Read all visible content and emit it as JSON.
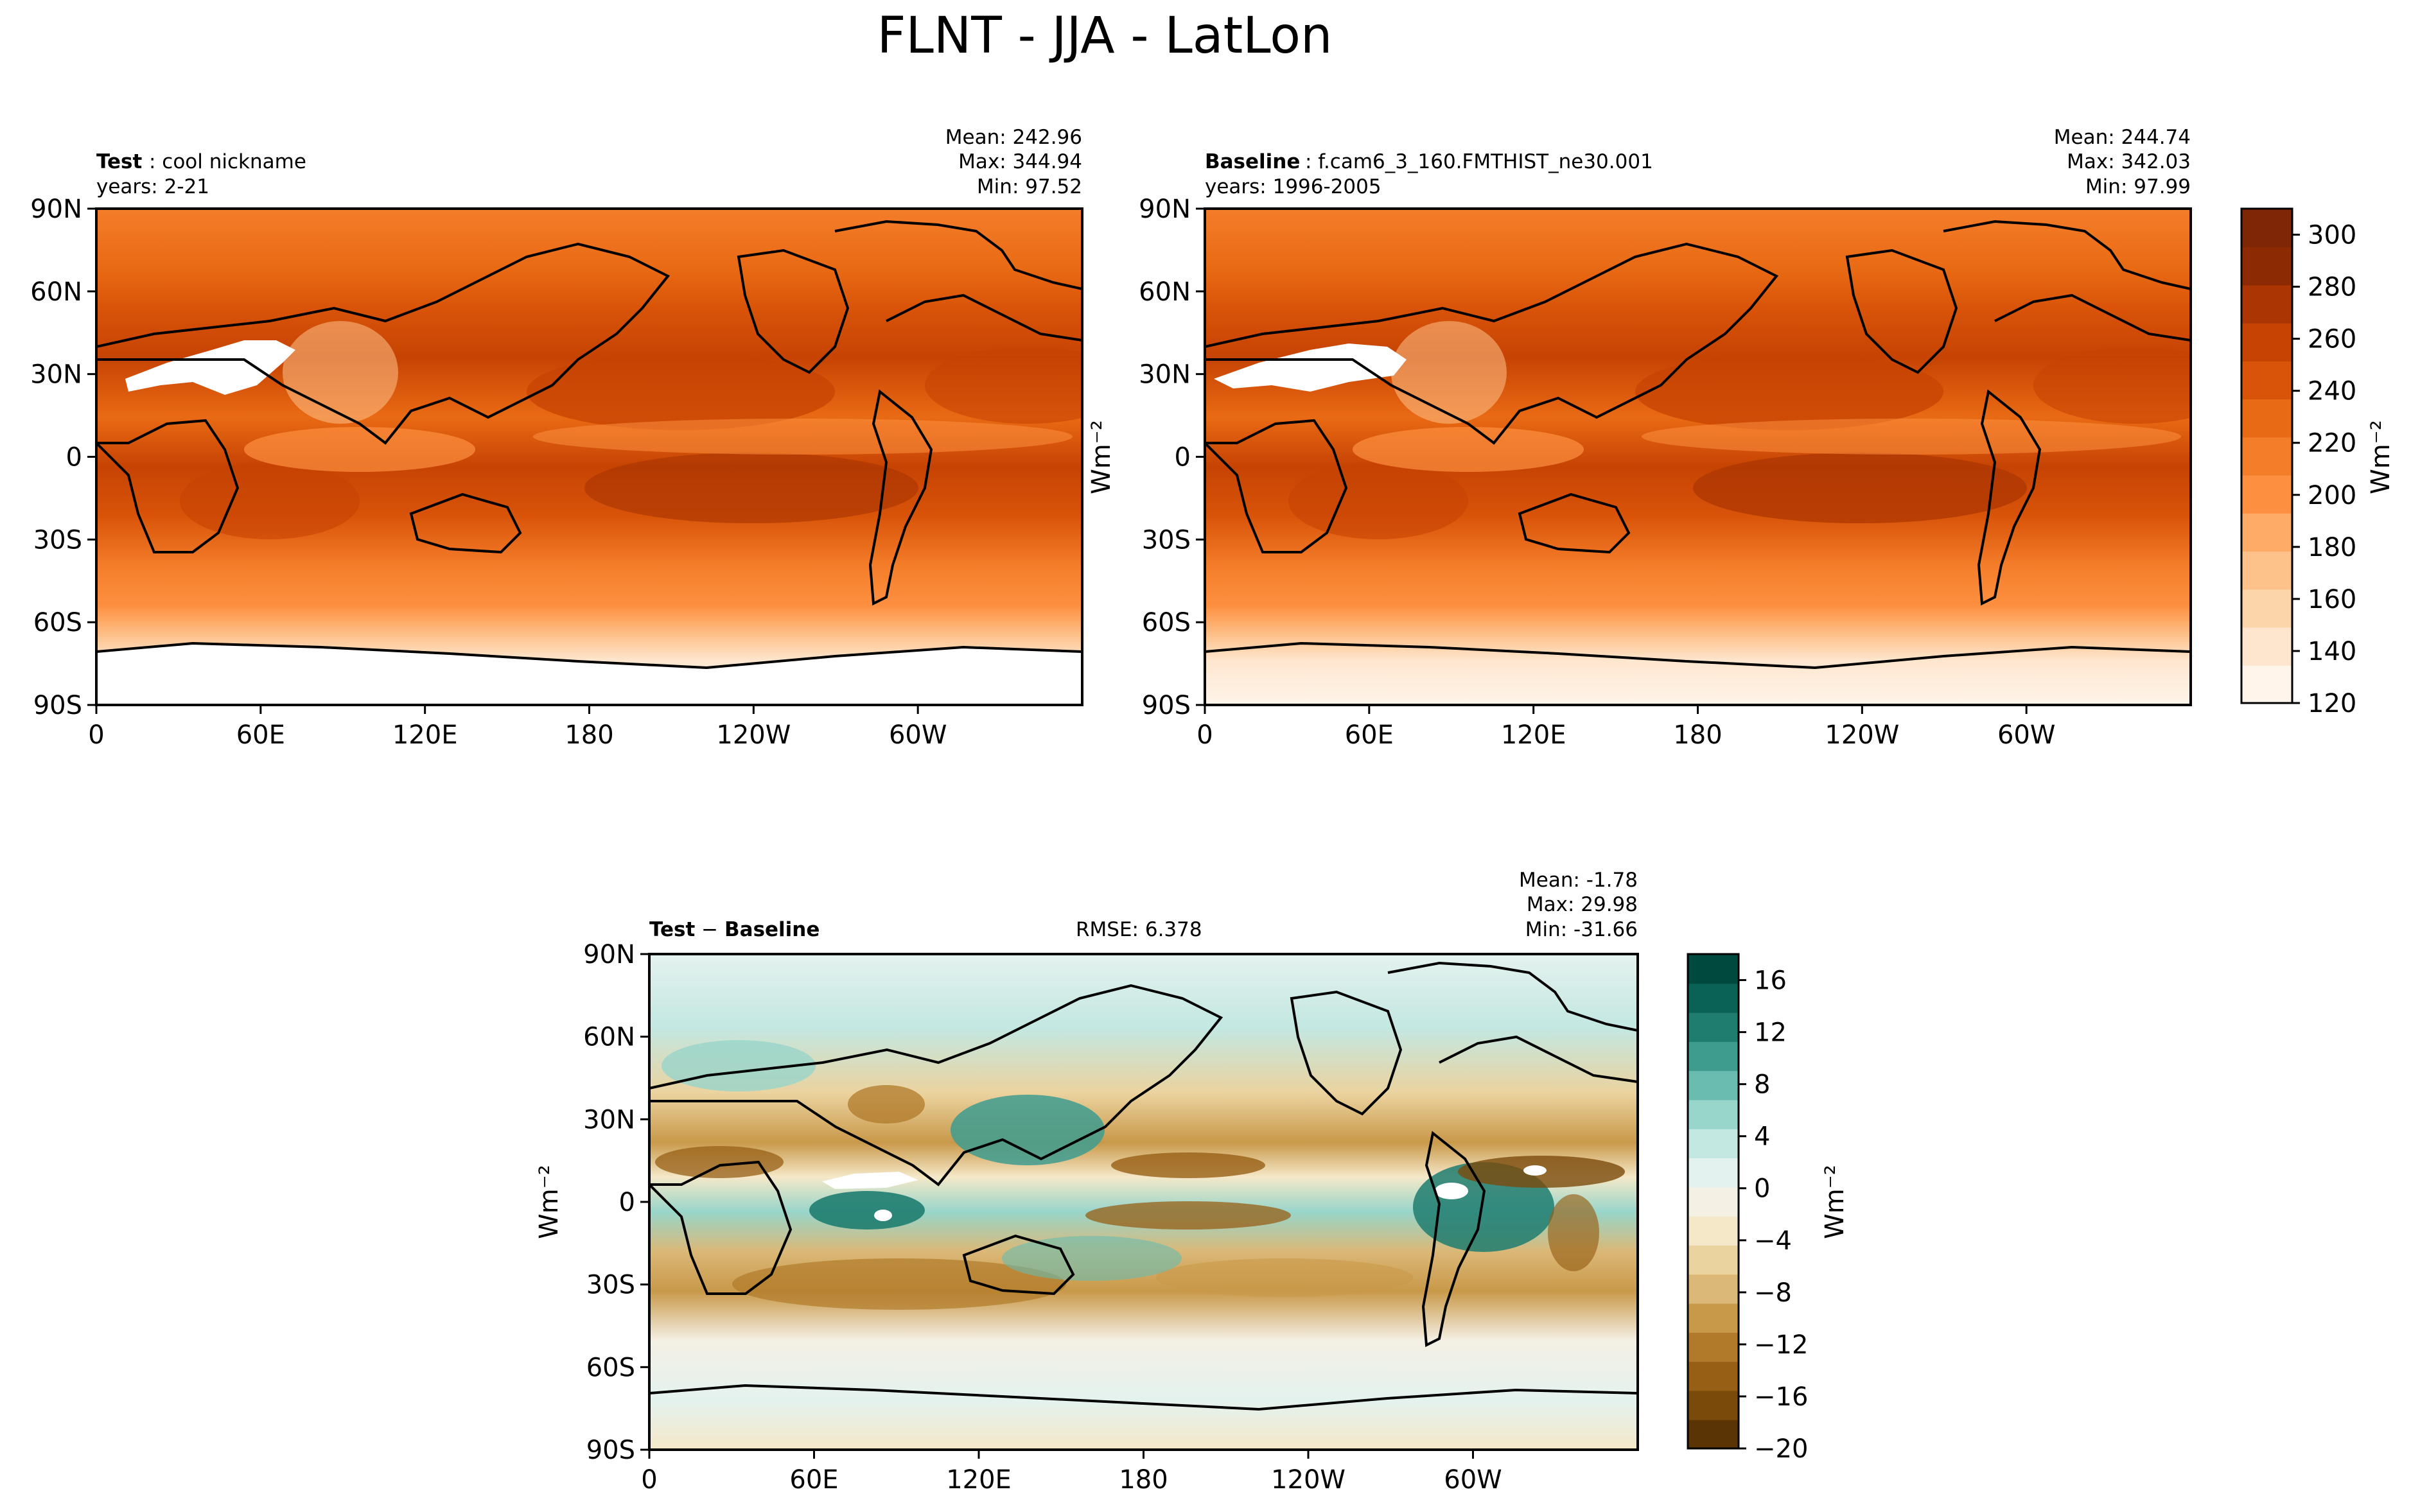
{
  "title": "FLNT - JJA - LatLon",
  "colors": {
    "test_baseline_scale": [
      "#fff5eb",
      "#fee6ce",
      "#fdd5ab",
      "#fdc18a",
      "#fdab67",
      "#fd9040",
      "#f47d2a",
      "#e96a14",
      "#d95409",
      "#c64303",
      "#ab3503",
      "#8c2b03",
      "#7f2704"
    ],
    "diff_scale": [
      "#5b3406",
      "#7a4a0b",
      "#975f15",
      "#b07a2a",
      "#c9994a",
      "#dbb877",
      "#ebd39f",
      "#f5e8c8",
      "#f4f0e4",
      "#e4f2ef",
      "#c3e7e1",
      "#98d5ca",
      "#69bcaf",
      "#3e9c8f",
      "#1f7d70",
      "#0a6156",
      "#00493f"
    ],
    "land_outline": "#000000",
    "missing": "#ffffff"
  },
  "chart_data": [
    {
      "type": "heatmap",
      "panel": "test",
      "label_bold": "Test",
      "label_text": ": cool nickname",
      "years": "years: 2-21",
      "stats": {
        "mean": "Mean: 242.96",
        "max": "Max: 344.94",
        "min": "Min: 97.52"
      },
      "x_ticks": [
        "0",
        "60E",
        "120E",
        "180",
        "120W",
        "60W"
      ],
      "y_ticks": [
        "90N",
        "60N",
        "30N",
        "0",
        "30S",
        "60S",
        "90S"
      ],
      "xlim": [
        0,
        360
      ],
      "ylim": [
        -90,
        90
      ]
    },
    {
      "type": "heatmap",
      "panel": "baseline",
      "label_bold": "Baseline",
      "label_text": ": f.cam6_3_160.FMTHIST_ne30.001",
      "years": "years: 1996-2005",
      "stats": {
        "mean": "Mean: 244.74",
        "max": "Max: 342.03",
        "min": "Min: 97.99"
      },
      "x_ticks": [
        "0",
        "60E",
        "120E",
        "180",
        "120W",
        "60W"
      ],
      "y_ticks": [
        "90N",
        "60N",
        "30N",
        "0",
        "30S",
        "60S",
        "90S"
      ],
      "xlim": [
        0,
        360
      ],
      "ylim": [
        -90,
        90
      ],
      "colorbar": {
        "ticks": [
          "120",
          "140",
          "160",
          "180",
          "200",
          "220",
          "240",
          "260",
          "280",
          "300"
        ],
        "range": [
          120,
          310
        ],
        "label": "Wm⁻²"
      },
      "ylabel": "Wm⁻²"
    },
    {
      "type": "heatmap",
      "panel": "difference",
      "label_bold_a": "Test",
      "label_minus": " − ",
      "label_bold_b": "Baseline",
      "rmse": "RMSE: 6.378",
      "stats": {
        "mean": "Mean: -1.78",
        "max": "Max: 29.98",
        "min": "Min: -31.66"
      },
      "x_ticks": [
        "0",
        "60E",
        "120E",
        "180",
        "120W",
        "60W"
      ],
      "y_ticks": [
        "90N",
        "60N",
        "30N",
        "0",
        "30S",
        "60S",
        "90S"
      ],
      "xlim": [
        0,
        360
      ],
      "ylim": [
        -90,
        90
      ],
      "ylabel": "Wm⁻²",
      "colorbar": {
        "ticks": [
          "16",
          "12",
          "8",
          "4",
          "0",
          "−4",
          "−8",
          "−12",
          "−16",
          "−20"
        ],
        "range": [
          -20,
          18
        ],
        "label": "Wm⁻²"
      }
    }
  ]
}
